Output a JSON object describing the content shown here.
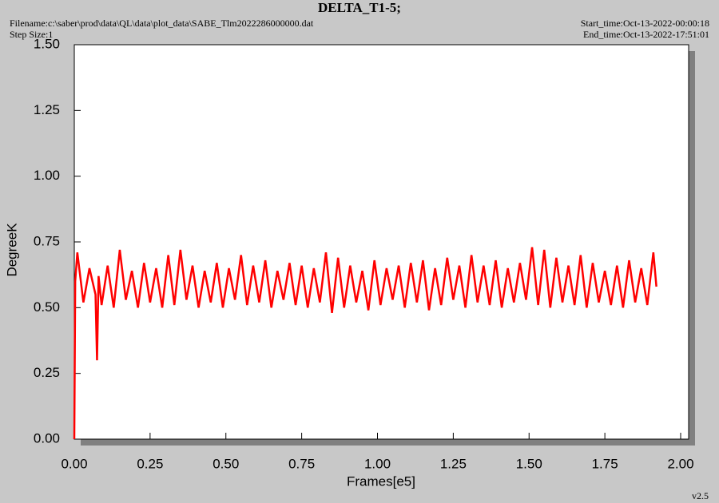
{
  "chart_data": {
    "type": "line",
    "title": "DELTA_T1-5;",
    "filename": "Filename:c:\\saber\\prod\\data\\QL\\data\\plot_data\\SABE_Tlm2022286000000.dat",
    "step_size": "Step Size:1",
    "start_time": "Start_time:Oct-13-2022-00:00:18",
    "end_time": "End_time:Oct-13-2022-17:51:01",
    "version": "v2.5",
    "xlabel": "Frames[e5]",
    "ylabel": "DegreeK",
    "xlim": [
      0,
      2.0
    ],
    "ylim": [
      0,
      1.5
    ],
    "xticks": [
      {
        "value": 0,
        "label": "0.00"
      },
      {
        "value": 0.25,
        "label": "0.25"
      },
      {
        "value": 0.5,
        "label": "0.50"
      },
      {
        "value": 0.75,
        "label": "0.75"
      },
      {
        "value": 1.0,
        "label": "1.00"
      },
      {
        "value": 1.25,
        "label": "1.25"
      },
      {
        "value": 1.5,
        "label": "1.50"
      },
      {
        "value": 1.75,
        "label": "1.75"
      },
      {
        "value": 2.0,
        "label": "2.00"
      }
    ],
    "yticks": [
      {
        "value": 0,
        "label": "0.00"
      },
      {
        "value": 0.25,
        "label": "0.25"
      },
      {
        "value": 0.5,
        "label": "0.50"
      },
      {
        "value": 0.75,
        "label": "0.75"
      },
      {
        "value": 1.0,
        "label": "1.00"
      },
      {
        "value": 1.25,
        "label": "1.25"
      },
      {
        "value": 1.5,
        "label": "1.50"
      }
    ],
    "grid": false,
    "x": [
      0,
      0.003,
      0.01,
      0.03,
      0.05,
      0.07,
      0.075,
      0.08,
      0.09,
      0.11,
      0.13,
      0.15,
      0.17,
      0.19,
      0.21,
      0.23,
      0.25,
      0.27,
      0.29,
      0.31,
      0.33,
      0.35,
      0.37,
      0.39,
      0.41,
      0.43,
      0.45,
      0.47,
      0.49,
      0.51,
      0.53,
      0.55,
      0.57,
      0.59,
      0.61,
      0.63,
      0.65,
      0.67,
      0.69,
      0.71,
      0.73,
      0.75,
      0.77,
      0.79,
      0.81,
      0.83,
      0.85,
      0.87,
      0.89,
      0.91,
      0.93,
      0.95,
      0.97,
      0.99,
      1.01,
      1.03,
      1.05,
      1.07,
      1.09,
      1.11,
      1.13,
      1.15,
      1.17,
      1.19,
      1.21,
      1.23,
      1.25,
      1.27,
      1.29,
      1.31,
      1.33,
      1.35,
      1.37,
      1.39,
      1.41,
      1.43,
      1.45,
      1.47,
      1.49,
      1.51,
      1.53,
      1.55,
      1.57,
      1.59,
      1.61,
      1.63,
      1.65,
      1.67,
      1.69,
      1.71,
      1.73,
      1.75,
      1.77,
      1.79,
      1.81,
      1.83,
      1.85,
      1.87,
      1.89,
      1.91,
      1.92
    ],
    "series": [
      {
        "name": "DELTA_T1-5",
        "color": "#ff0000",
        "values": [
          0,
          0.6,
          0.71,
          0.52,
          0.65,
          0.55,
          0.3,
          0.62,
          0.51,
          0.66,
          0.5,
          0.72,
          0.53,
          0.64,
          0.5,
          0.67,
          0.52,
          0.65,
          0.5,
          0.7,
          0.51,
          0.72,
          0.53,
          0.66,
          0.5,
          0.64,
          0.52,
          0.67,
          0.5,
          0.65,
          0.53,
          0.7,
          0.51,
          0.66,
          0.52,
          0.68,
          0.5,
          0.64,
          0.53,
          0.67,
          0.51,
          0.66,
          0.5,
          0.65,
          0.52,
          0.71,
          0.48,
          0.69,
          0.5,
          0.66,
          0.52,
          0.64,
          0.49,
          0.68,
          0.51,
          0.65,
          0.53,
          0.66,
          0.5,
          0.67,
          0.52,
          0.68,
          0.49,
          0.65,
          0.51,
          0.69,
          0.53,
          0.66,
          0.5,
          0.7,
          0.52,
          0.66,
          0.51,
          0.68,
          0.5,
          0.65,
          0.52,
          0.67,
          0.53,
          0.73,
          0.51,
          0.72,
          0.5,
          0.69,
          0.52,
          0.66,
          0.51,
          0.7,
          0.5,
          0.67,
          0.52,
          0.64,
          0.51,
          0.66,
          0.5,
          0.68,
          0.52,
          0.65,
          0.51,
          0.71,
          0.58
        ]
      }
    ]
  }
}
